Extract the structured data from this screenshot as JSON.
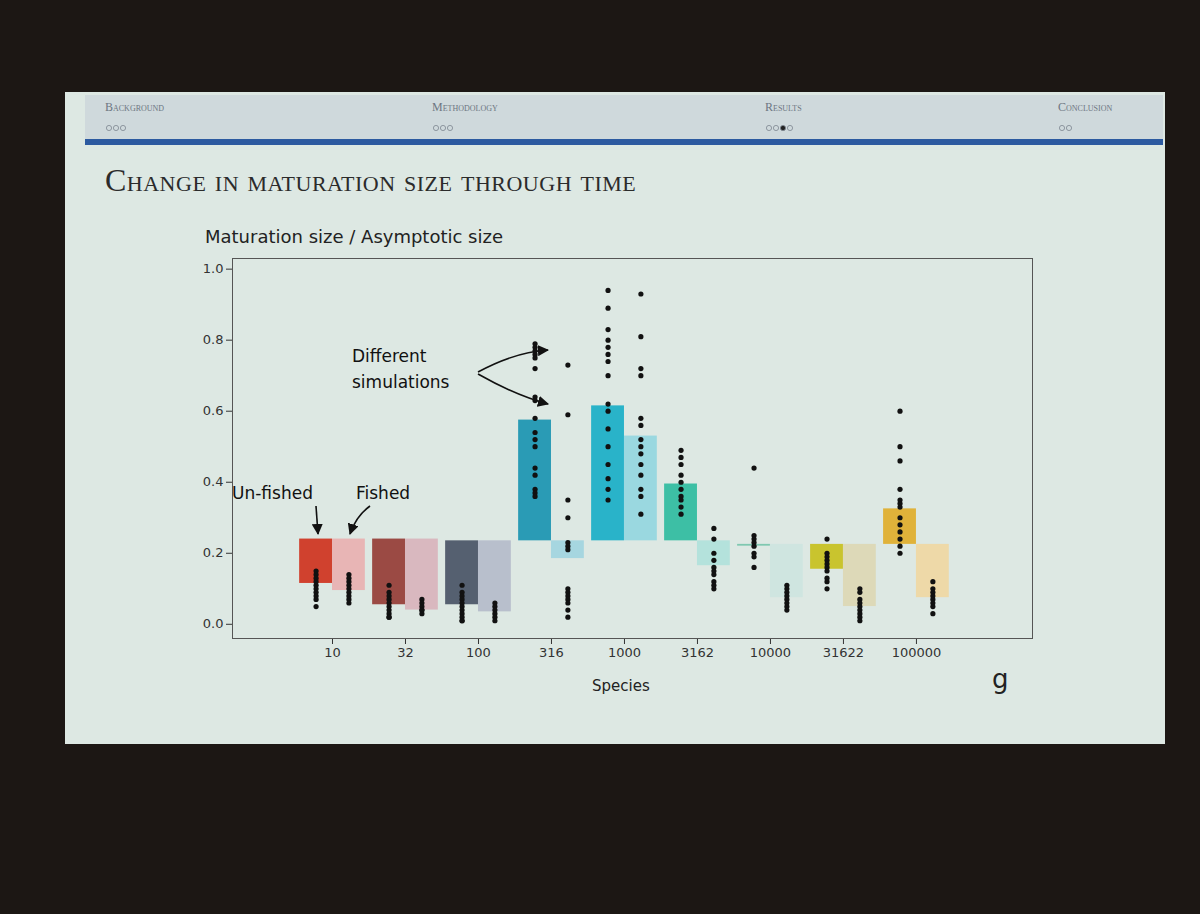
{
  "chart_data": {
    "type": "bar",
    "title": "Change in maturation size through time",
    "header_sections": [
      "Background",
      "Methodology",
      "Results",
      "Conclusion"
    ],
    "y_label": "Maturation size / Asymptotic size",
    "x_label": "Species",
    "x_unit": "g",
    "annotations": [
      "Different simulations"
    ],
    "categories": [
      "10",
      "32",
      "100",
      "316",
      "1000",
      "3162",
      "10000",
      "31622",
      "100000"
    ],
    "ylim": [
      -0.04,
      1.03
    ],
    "yticks": [
      {
        "value": 0.0,
        "label": "0.0"
      },
      {
        "value": 0.2,
        "label": "0.2"
      },
      {
        "value": 0.4,
        "label": "0.4"
      },
      {
        "value": 0.6,
        "label": "0.6"
      },
      {
        "value": 0.8,
        "label": "0.8"
      },
      {
        "value": 1.0,
        "label": "1.0"
      }
    ],
    "series": [
      {
        "name": "Un-fished",
        "base": [
          0.24,
          0.24,
          0.235,
          0.235,
          0.235,
          0.235,
          0.225,
          0.225,
          0.225
        ],
        "values": [
          0.115,
          0.055,
          0.055,
          0.575,
          0.615,
          0.395,
          0.22,
          0.155,
          0.325
        ],
        "colors": [
          "#d0412e",
          "#9b4a44",
          "#556070",
          "#2a9bb5",
          "#29b3c9",
          "#3dbfa5",
          "#7fc8b0",
          "#c9c42e",
          "#e0b23a"
        ],
        "simulations": [
          [
            0.15,
            0.14,
            0.13,
            0.12,
            0.11,
            0.1,
            0.09,
            0.08,
            0.07,
            0.05
          ],
          [
            0.11,
            0.09,
            0.08,
            0.07,
            0.06,
            0.05,
            0.04,
            0.03,
            0.02,
            0.02
          ],
          [
            0.11,
            0.09,
            0.08,
            0.07,
            0.06,
            0.05,
            0.04,
            0.03,
            0.02,
            0.01,
            0.01
          ],
          [
            0.79,
            0.78,
            0.77,
            0.76,
            0.75,
            0.72,
            0.64,
            0.63,
            0.58,
            0.54,
            0.52,
            0.5,
            0.44,
            0.42,
            0.38,
            0.37,
            0.36
          ],
          [
            0.94,
            0.89,
            0.83,
            0.8,
            0.78,
            0.76,
            0.74,
            0.7,
            0.62,
            0.6,
            0.55,
            0.5,
            0.45,
            0.41,
            0.38,
            0.35
          ],
          [
            0.49,
            0.47,
            0.45,
            0.42,
            0.4,
            0.38,
            0.36,
            0.35,
            0.33,
            0.31
          ],
          [
            0.44,
            0.25,
            0.24,
            0.23,
            0.22,
            0.2,
            0.19,
            0.16
          ],
          [
            0.24,
            0.2,
            0.19,
            0.18,
            0.17,
            0.16,
            0.15,
            0.13,
            0.12,
            0.1
          ],
          [
            0.6,
            0.5,
            0.46,
            0.38,
            0.35,
            0.34,
            0.33,
            0.3,
            0.28,
            0.26,
            0.24,
            0.22,
            0.2
          ]
        ]
      },
      {
        "name": "Fished",
        "base": [
          0.24,
          0.24,
          0.235,
          0.235,
          0.235,
          0.235,
          0.225,
          0.225,
          0.225
        ],
        "values": [
          0.095,
          0.04,
          0.035,
          0.185,
          0.53,
          0.165,
          0.075,
          0.05,
          0.075
        ],
        "colors": [
          "#e8b5b5",
          "#d9b8bf",
          "#b8bfcc",
          "#a6d6e0",
          "#9ad8e0",
          "#b4e2dc",
          "#cfe5e0",
          "#ddd9b8",
          "#eed9a8"
        ],
        "simulations": [
          [
            0.14,
            0.13,
            0.12,
            0.11,
            0.1,
            0.09,
            0.08,
            0.07,
            0.06
          ],
          [
            0.07,
            0.06,
            0.05,
            0.04,
            0.04,
            0.03
          ],
          [
            0.06,
            0.05,
            0.04,
            0.03,
            0.02,
            0.01
          ],
          [
            0.73,
            0.59,
            0.35,
            0.3,
            0.23,
            0.22,
            0.21,
            0.1,
            0.09,
            0.08,
            0.07,
            0.06,
            0.04,
            0.02
          ],
          [
            0.93,
            0.81,
            0.72,
            0.7,
            0.58,
            0.56,
            0.52,
            0.5,
            0.48,
            0.45,
            0.42,
            0.38,
            0.36,
            0.31
          ],
          [
            0.27,
            0.24,
            0.2,
            0.18,
            0.16,
            0.15,
            0.14,
            0.12,
            0.11,
            0.1
          ],
          [
            0.11,
            0.1,
            0.09,
            0.08,
            0.07,
            0.06,
            0.05,
            0.04
          ],
          [
            0.1,
            0.09,
            0.07,
            0.06,
            0.05,
            0.04,
            0.03,
            0.02,
            0.01
          ],
          [
            0.12,
            0.1,
            0.09,
            0.08,
            0.07,
            0.06,
            0.05,
            0.03
          ]
        ]
      }
    ]
  }
}
